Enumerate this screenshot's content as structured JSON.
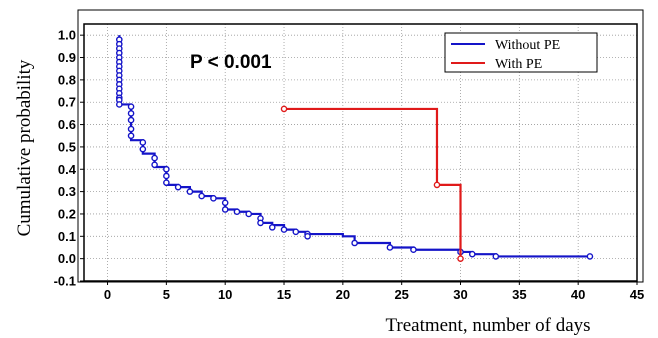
{
  "chart_data": {
    "type": "line",
    "step": true,
    "xlabel": "Treatment, number of days",
    "ylabel": "Cumulative probability",
    "xlim": [
      -2,
      45
    ],
    "ylim": [
      -0.1,
      1.05
    ],
    "x_ticks": [
      0,
      5,
      10,
      15,
      20,
      25,
      30,
      35,
      40,
      45
    ],
    "x_tick_labels": [
      "0",
      "5",
      "10",
      "15",
      "20",
      "25",
      "30",
      "35",
      "40",
      "45"
    ],
    "y_ticks": [
      -0.1,
      0.0,
      0.1,
      0.2,
      0.3,
      0.4,
      0.5,
      0.6,
      0.7,
      0.8,
      0.9,
      1.0
    ],
    "y_tick_labels": [
      "-0.1",
      "0.0",
      "0.1",
      "0.2",
      "0.3",
      "0.4",
      "0.5",
      "0.6",
      "0.7",
      "0.8",
      "0.9",
      "1.0"
    ],
    "grid": true,
    "legend_position": "top-right",
    "annotation": "P < 0.001",
    "series": [
      {
        "name": "Without PE",
        "color": "#1414c8",
        "x": [
          1,
          1,
          1,
          2,
          2,
          3,
          3,
          4,
          4,
          5,
          5,
          6,
          7,
          8,
          9,
          10,
          10,
          11,
          12,
          13,
          13,
          14,
          15,
          16,
          17,
          20,
          21,
          24,
          26,
          30,
          31,
          33,
          41
        ],
        "y": [
          1.0,
          0.69,
          0.69,
          0.69,
          0.53,
          0.53,
          0.47,
          0.47,
          0.41,
          0.41,
          0.33,
          0.32,
          0.3,
          0.28,
          0.27,
          0.25,
          0.22,
          0.21,
          0.2,
          0.18,
          0.16,
          0.15,
          0.13,
          0.12,
          0.11,
          0.1,
          0.07,
          0.05,
          0.04,
          0.03,
          0.02,
          0.01,
          0.01
        ],
        "censored_x": [
          1,
          1,
          1,
          1,
          1,
          1,
          1,
          1,
          1,
          1,
          1,
          1,
          1,
          1,
          1,
          1,
          2,
          2,
          2,
          2,
          2,
          3,
          3,
          4,
          4,
          5,
          5,
          5,
          6,
          7,
          8,
          9,
          10,
          10,
          11,
          12,
          13,
          13,
          14,
          15,
          16,
          17,
          17,
          21,
          24,
          26,
          30,
          31,
          33,
          41
        ],
        "censored_y": [
          0.98,
          0.96,
          0.94,
          0.92,
          0.9,
          0.88,
          0.86,
          0.84,
          0.82,
          0.8,
          0.78,
          0.76,
          0.74,
          0.72,
          0.71,
          0.69,
          0.68,
          0.65,
          0.62,
          0.58,
          0.55,
          0.52,
          0.49,
          0.45,
          0.42,
          0.4,
          0.37,
          0.34,
          0.32,
          0.3,
          0.28,
          0.27,
          0.25,
          0.22,
          0.21,
          0.2,
          0.18,
          0.16,
          0.14,
          0.13,
          0.12,
          0.11,
          0.1,
          0.07,
          0.05,
          0.04,
          0.03,
          0.02,
          0.01,
          0.01
        ]
      },
      {
        "name": "With PE",
        "color": "#e01a1a",
        "x": [
          15,
          28,
          30
        ],
        "y": [
          0.67,
          0.33,
          0.0
        ],
        "censored_x": [
          15,
          28,
          30
        ],
        "censored_y": [
          0.67,
          0.33,
          0.0
        ]
      }
    ]
  }
}
